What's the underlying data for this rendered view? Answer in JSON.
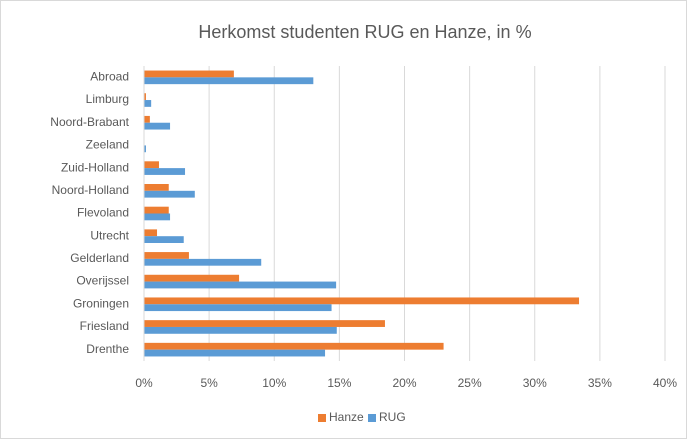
{
  "chart_data": {
    "type": "hbar",
    "title": "Herkomst studenten RUG en Hanze, in %",
    "categories": [
      "Abroad",
      "Limburg",
      "Noord-Brabant",
      "Zeeland",
      "Zuid-Holland",
      "Noord-Holland",
      "Flevoland",
      "Utrecht",
      "Gelderland",
      "Overijssel",
      "Groningen",
      "Friesland",
      "Drenthe"
    ],
    "series": [
      {
        "name": "Hanze",
        "color": "#ed7d31",
        "values": [
          6.9,
          0.15,
          0.45,
          0,
          1.15,
          1.9,
          1.9,
          1.0,
          3.45,
          7.3,
          33.4,
          18.5,
          23.0
        ]
      },
      {
        "name": "RUG",
        "color": "#5b9bd5",
        "values": [
          13.0,
          0.55,
          2.0,
          0.15,
          3.15,
          3.9,
          2.0,
          3.05,
          9.0,
          14.75,
          14.4,
          14.8,
          13.9
        ]
      }
    ],
    "xlim": [
      0,
      40
    ],
    "xticks": [
      {
        "value": 0,
        "label": "0%"
      },
      {
        "value": 5,
        "label": "5%"
      },
      {
        "value": 10,
        "label": "10%"
      },
      {
        "value": 15,
        "label": "15%"
      },
      {
        "value": 20,
        "label": "20%"
      },
      {
        "value": 25,
        "label": "25%"
      },
      {
        "value": 30,
        "label": "30%"
      },
      {
        "value": 35,
        "label": "35%"
      },
      {
        "value": 40,
        "label": "40%"
      }
    ],
    "grid": true,
    "legend": "bottom"
  }
}
